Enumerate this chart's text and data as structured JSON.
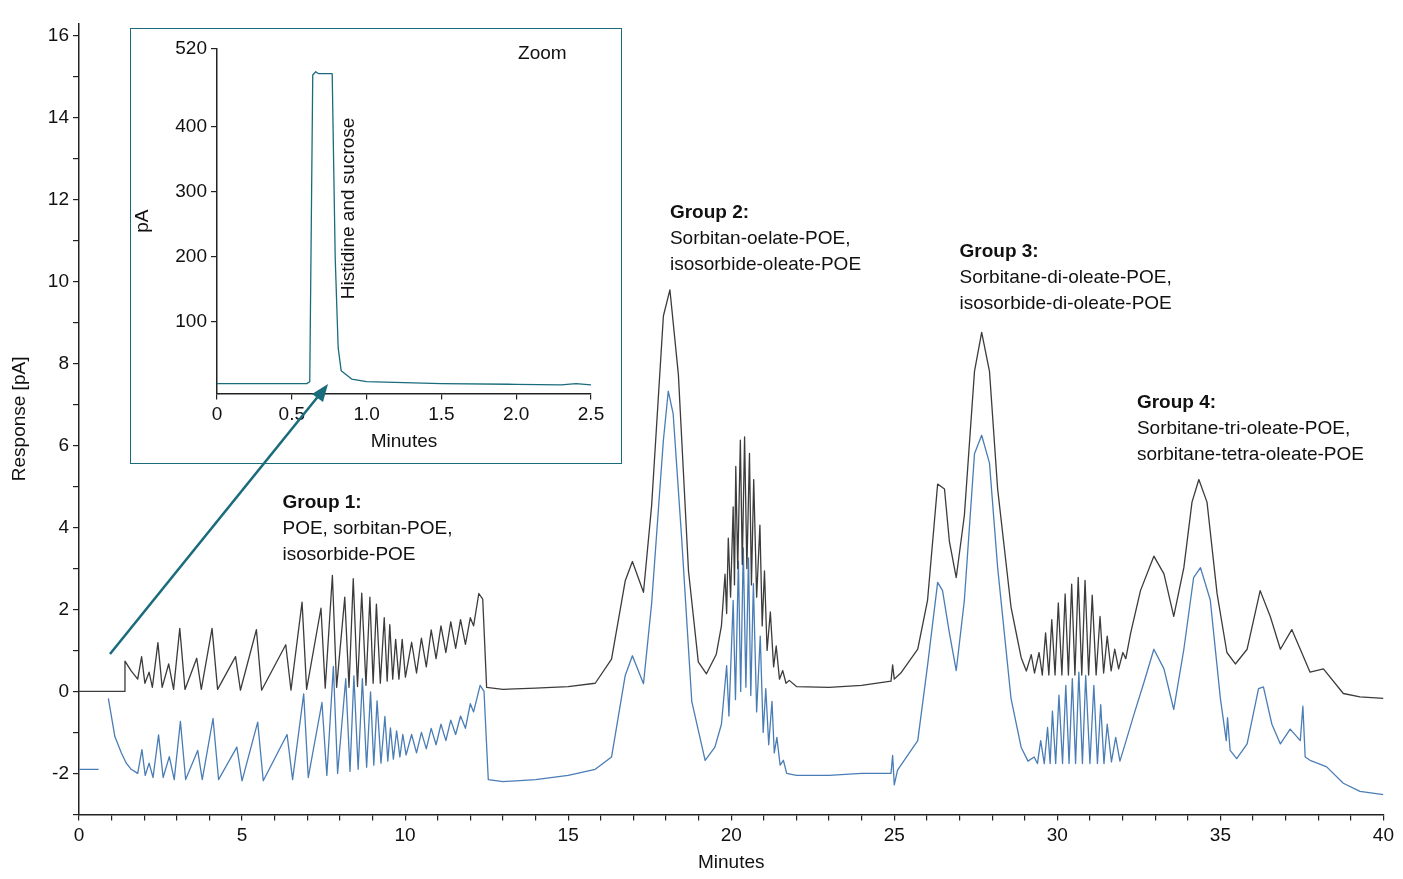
{
  "chart_data": [
    {
      "type": "line",
      "xlabel": "Minutes",
      "ylabel": "Response [pA]",
      "marker": "none",
      "xlim": [
        0,
        40
      ],
      "ylim": [
        -3,
        16.3
      ],
      "xticks": [
        0,
        {
          "value": 1,
          "label": null
        },
        {
          "value": 2,
          "label": null
        },
        {
          "value": 3,
          "label": null
        },
        {
          "value": 4,
          "label": null
        },
        5,
        {
          "value": 6,
          "label": null
        },
        {
          "value": 7,
          "label": null
        },
        {
          "value": 8,
          "label": null
        },
        {
          "value": 9,
          "label": null
        },
        10,
        {
          "value": 11,
          "label": null
        },
        {
          "value": 12,
          "label": null
        },
        {
          "value": 13,
          "label": null
        },
        {
          "value": 14,
          "label": null
        },
        15,
        {
          "value": 16,
          "label": null
        },
        {
          "value": 17,
          "label": null
        },
        {
          "value": 18,
          "label": null
        },
        {
          "value": 19,
          "label": null
        },
        20,
        {
          "value": 21,
          "label": null
        },
        {
          "value": 22,
          "label": null
        },
        {
          "value": 23,
          "label": null
        },
        {
          "value": 24,
          "label": null
        },
        25,
        {
          "value": 26,
          "label": null
        },
        {
          "value": 27,
          "label": null
        },
        {
          "value": 28,
          "label": null
        },
        {
          "value": 29,
          "label": null
        },
        30,
        {
          "value": 31,
          "label": null
        },
        {
          "value": 32,
          "label": null
        },
        {
          "value": 33,
          "label": null
        },
        {
          "value": 34,
          "label": null
        },
        35,
        {
          "value": 36,
          "label": null
        },
        {
          "value": 37,
          "label": null
        },
        {
          "value": 38,
          "label": null
        },
        {
          "value": 39,
          "label": null
        },
        40
      ],
      "yticks": [
        {
          "value": -3,
          "label": null
        },
        -2,
        {
          "value": -1,
          "label": null
        },
        0,
        {
          "value": 1,
          "label": null
        },
        2,
        {
          "value": 3,
          "label": null
        },
        4,
        {
          "value": 5,
          "label": null
        },
        6,
        {
          "value": 7,
          "label": null
        },
        8,
        {
          "value": 9,
          "label": null
        },
        10,
        {
          "value": 11,
          "label": null
        },
        12,
        {
          "value": 13,
          "label": null
        },
        14,
        {
          "value": 15,
          "label": null
        },
        16
      ],
      "annotations": [
        "Group 1:\nPOE, sorbitan-POE,\nisosorbide-POE",
        "Group 2:\nSorbitan-oelate-POE,\nisosorbide-oleate-POE",
        "Group 3:\nSorbitane-di-oleate-POE,\nisosorbide-di-oleate-POE",
        "Group 4:\nSorbitane-tri-oleate-POE,\nsorbitane-tetra-oleate-POE"
      ],
      "series": [
        {
          "color": "#3c3c3c",
          "x": [
            0,
            1.38,
            1.41,
            1.6,
            1.8,
            1.92,
            2.02,
            2.15,
            2.25,
            2.42,
            2.55,
            2.75,
            2.9,
            3.09,
            3.25,
            3.61,
            3.75,
            4.08,
            4.25,
            4.8,
            4.95,
            5.44,
            5.6,
            6.34,
            6.5,
            6.84,
            6.98,
            7.42,
            7.55,
            7.77,
            7.9,
            8.15,
            8.28,
            8.41,
            8.54,
            8.67,
            8.8,
            8.92,
            9.02,
            9.12,
            9.24,
            9.36,
            9.45,
            9.53,
            9.62,
            9.71,
            9.81,
            9.91,
            10.01,
            10.2,
            10.35,
            10.5,
            10.65,
            10.8,
            10.95,
            11.1,
            11.25,
            11.4,
            11.55,
            11.7,
            11.85,
            12.0,
            12.1,
            12.26,
            12.38,
            12.5,
            13,
            14,
            15,
            15.83,
            16.33,
            16.75,
            16.97,
            17.31,
            17.56,
            17.92,
            18.12,
            18.38,
            18.69,
            18.99,
            19.24,
            19.54,
            19.7,
            19.81,
            19.86,
            19.91,
            19.98,
            20.06,
            20.1,
            20.14,
            20.2,
            20.28,
            20.34,
            20.41,
            20.48,
            20.56,
            20.62,
            20.69,
            20.78,
            20.88,
            20.95,
            21.02,
            21.1,
            21.2,
            21.3,
            21.38,
            21.48,
            21.58,
            21.68,
            21.78,
            22,
            23,
            24,
            24.9,
            24.95,
            25.0,
            25.2,
            25.72,
            26.02,
            26.33,
            26.54,
            26.69,
            26.9,
            27.15,
            27.46,
            27.68,
            27.92,
            28.17,
            28.58,
            28.89,
            29.05,
            29.2,
            29.3,
            29.44,
            29.54,
            29.64,
            29.74,
            29.83,
            29.93,
            30.03,
            30.14,
            30.24,
            30.34,
            30.44,
            30.54,
            30.64,
            30.75,
            30.85,
            30.96,
            31.07,
            31.19,
            31.31,
            31.42,
            31.53,
            31.65,
            31.76,
            31.88,
            32.01,
            32.1,
            32.25,
            32.55,
            32.96,
            33.27,
            33.57,
            33.88,
            34.13,
            34.34,
            34.59,
            34.9,
            35.2,
            35.46,
            35.82,
            36.22,
            36.53,
            36.84,
            37.19,
            37.45,
            37.75,
            38.16,
            38.77,
            39.28,
            40
          ],
          "values": [
            0,
            0,
            0.74,
            0.5,
            0.3,
            0.85,
            0.2,
            0.47,
            0.1,
            1.19,
            0.1,
            0.67,
            0.05,
            1.54,
            0.05,
            0.81,
            0.05,
            1.54,
            0.05,
            0.85,
            0.03,
            1.51,
            0.03,
            1.14,
            0.03,
            2.18,
            0.05,
            2.03,
            0.08,
            2.83,
            0.1,
            2.3,
            0.1,
            2.75,
            0.12,
            2.4,
            0.15,
            2.3,
            0.2,
            2.13,
            0.2,
            1.8,
            0.25,
            1.63,
            0.3,
            1.27,
            0.3,
            1.27,
            0.35,
            1.2,
            0.45,
            1.3,
            0.6,
            1.5,
            0.8,
            1.6,
            0.95,
            1.7,
            1.05,
            1.75,
            1.15,
            1.8,
            1.6,
            2.39,
            2.25,
            0.1,
            0.05,
            0.08,
            0.12,
            0.2,
            0.79,
            2.7,
            3.17,
            2.42,
            4.54,
            9.16,
            9.8,
            7.73,
            2.94,
            0.72,
            0.43,
            0.9,
            1.6,
            2.86,
            1.9,
            3.74,
            2.3,
            4.5,
            2.6,
            5.49,
            3.0,
            6.13,
            3.1,
            6.21,
            3.0,
            5.81,
            2.6,
            5.17,
            2.3,
            4.06,
            1.6,
            2.94,
            1.0,
            1.94,
            0.6,
            1.11,
            0.3,
            0.51,
            0.2,
            0.27,
            0.12,
            0.1,
            0.15,
            0.25,
            0.65,
            0.3,
            0.45,
            1.03,
            2.22,
            5.06,
            4.94,
            3.66,
            2.78,
            4.3,
            7.81,
            8.76,
            7.81,
            4.94,
            2.06,
            0.83,
            0.5,
            0.9,
            0.45,
            0.95,
            0.4,
            1.43,
            0.4,
            1.75,
            0.4,
            2.16,
            0.4,
            2.38,
            0.4,
            2.62,
            0.4,
            2.78,
            0.4,
            2.71,
            0.4,
            2.35,
            0.4,
            1.83,
            0.45,
            1.35,
            0.5,
            1.03,
            0.55,
            0.95,
            0.8,
            1.43,
            2.46,
            3.3,
            2.87,
            1.83,
            3.02,
            4.62,
            5.17,
            4.62,
            2.38,
            0.95,
            0.67,
            1.03,
            2.46,
            1.83,
            1.03,
            1.51,
            1.03,
            0.47,
            0.55,
            -0.05,
            -0.13,
            -0.17
          ]
        },
        {
          "color": "#4a7db5",
          "x": [
            0,
            0.6,
            0.66,
            0.84,
            0.9,
            1.1,
            1.3,
            1.45,
            1.6,
            1.8,
            1.93,
            2.03,
            2.15,
            2.27,
            2.44,
            2.58,
            2.77,
            2.92,
            3.11,
            3.27,
            3.64,
            3.78,
            4.11,
            4.28,
            4.84,
            5.0,
            5.48,
            5.65,
            6.38,
            6.55,
            6.89,
            7.03,
            7.45,
            7.6,
            7.8,
            7.93,
            8.18,
            8.31,
            8.43,
            8.56,
            8.69,
            8.82,
            8.94,
            9.04,
            9.14,
            9.26,
            9.38,
            9.47,
            9.55,
            9.64,
            9.74,
            9.84,
            9.93,
            10.03,
            10.2,
            10.35,
            10.5,
            10.65,
            10.8,
            10.95,
            11.1,
            11.25,
            11.4,
            11.55,
            11.7,
            11.85,
            12.0,
            12.1,
            12.3,
            12.42,
            12.55,
            13,
            14,
            15,
            15.83,
            16.33,
            16.75,
            16.97,
            17.31,
            17.56,
            17.92,
            18.07,
            18.22,
            18.48,
            18.79,
            19.2,
            19.5,
            19.7,
            19.86,
            19.93,
            20.06,
            20.13,
            20.22,
            20.29,
            20.37,
            20.45,
            20.53,
            20.6,
            20.68,
            20.78,
            20.89,
            20.98,
            21.06,
            21.15,
            21.25,
            21.32,
            21.4,
            21.5,
            21.6,
            21.7,
            22,
            23,
            24,
            24.9,
            24.95,
            25.0,
            25.1,
            25.72,
            26.02,
            26.33,
            26.48,
            26.69,
            26.9,
            27.15,
            27.46,
            27.68,
            27.92,
            28.17,
            28.58,
            28.89,
            29.1,
            29.29,
            29.39,
            29.49,
            29.6,
            29.7,
            29.78,
            29.85,
            29.95,
            30.05,
            30.16,
            30.26,
            30.36,
            30.46,
            30.56,
            30.66,
            30.77,
            30.87,
            31.0,
            31.12,
            31.23,
            31.33,
            31.43,
            31.53,
            31.66,
            31.79,
            31.92,
            32.05,
            32.35,
            32.66,
            32.96,
            33.27,
            33.57,
            33.88,
            34.18,
            34.39,
            34.69,
            35.0,
            35.18,
            35.22,
            35.3,
            35.5,
            35.82,
            36.17,
            36.32,
            36.58,
            36.84,
            37.14,
            37.45,
            37.53,
            37.6,
            37.75,
            38.26,
            38.77,
            39.28,
            40
          ],
          "values": [
            -1.9,
            -1.9,
            null,
            null,
            -0.17,
            -1.1,
            -1.5,
            -1.75,
            -1.9,
            -2.0,
            -1.42,
            -2.05,
            -1.75,
            -2.1,
            -1.06,
            -2.1,
            -1.59,
            -2.15,
            -0.73,
            -2.15,
            -1.44,
            -2.15,
            -0.66,
            -2.15,
            -1.36,
            -2.18,
            -0.75,
            -2.18,
            -1.05,
            -2.15,
            -0.06,
            -2.1,
            -0.27,
            -2.05,
            0.61,
            -2.0,
            0.31,
            -1.95,
            0.38,
            -1.9,
            0.31,
            -1.85,
            -0.01,
            -1.8,
            -0.23,
            -1.75,
            -0.61,
            -1.7,
            -0.89,
            -1.65,
            -0.96,
            -1.6,
            -1.05,
            -1.55,
            -1.05,
            -1.5,
            -1.0,
            -1.4,
            -0.9,
            -1.3,
            -0.8,
            -1.2,
            -0.7,
            -1.05,
            -0.6,
            -0.9,
            -0.3,
            -0.5,
            0.15,
            0.0,
            -2.15,
            -2.2,
            -2.15,
            -2.05,
            -1.9,
            -1.6,
            0.39,
            0.87,
            0.19,
            2.15,
            6.13,
            7.33,
            6.77,
            3.74,
            -0.24,
            -1.68,
            -1.36,
            -0.8,
            0.63,
            -0.6,
            2.22,
            -0.2,
            3.18,
            0.0,
            3.5,
            0.1,
            3.26,
            -0.1,
            2.63,
            -0.5,
            1.35,
            -1.0,
            0.07,
            -1.3,
            -0.24,
            -1.5,
            -1.12,
            -1.8,
            -1.68,
            -2.0,
            -2.05,
            -2.05,
            -2.0,
            -2.0,
            -1.56,
            -2.28,
            -1.92,
            -1.2,
            0.63,
            2.66,
            2.46,
            1.43,
            0.51,
            2.23,
            5.8,
            6.25,
            5.57,
            3.02,
            -0.17,
            -1.36,
            -1.7,
            -1.6,
            -1.76,
            -1.2,
            -1.76,
            -0.88,
            -1.76,
            -0.48,
            -1.76,
            -0.09,
            -1.76,
            0.15,
            -1.76,
            0.31,
            -1.76,
            0.47,
            -1.76,
            0.39,
            -1.76,
            0.15,
            -1.76,
            -0.32,
            -1.76,
            -0.8,
            -1.72,
            -1.12,
            -1.7,
            -1.36,
            -0.56,
            0.23,
            1.03,
            0.55,
            -0.44,
            1.03,
            2.78,
            3.02,
            2.23,
            -0.17,
            -1.2,
            -0.64,
            -1.44,
            -1.64,
            -1.28,
            0.07,
            0.11,
            -0.8,
            -1.28,
            -0.92,
            -1.2,
            -0.36,
            -1.6,
            -1.68,
            -1.84,
            -2.24,
            -2.44,
            -2.52
          ]
        }
      ]
    },
    {
      "type": "line",
      "xlabel": "Minutes",
      "ylabel": "pA",
      "marker": "none",
      "xlim": [
        0,
        2.5
      ],
      "ylim": [
        -10,
        520
      ],
      "xticks": [
        0,
        0.5,
        {
          "value": 1,
          "label": "1.0"
        },
        1.5,
        {
          "value": 2,
          "label": "2.0"
        },
        2.5
      ],
      "yticks": [
        100,
        200,
        300,
        400,
        520
      ],
      "annotations": [
        "Zoom",
        "Histidine and sucrose"
      ],
      "series": [
        {
          "color": "#1a6b7c",
          "x": [
            0,
            0.6,
            0.62,
            0.64,
            0.66,
            0.68,
            0.77,
            0.79,
            0.81,
            0.83,
            0.9,
            1.0,
            1.5,
            2.0,
            2.3,
            2.4,
            2.5
          ],
          "values": [
            5,
            5,
            8,
            480,
            485,
            482,
            482,
            200,
            60,
            25,
            12,
            8,
            5,
            4,
            3,
            5,
            3
          ]
        }
      ]
    }
  ]
}
